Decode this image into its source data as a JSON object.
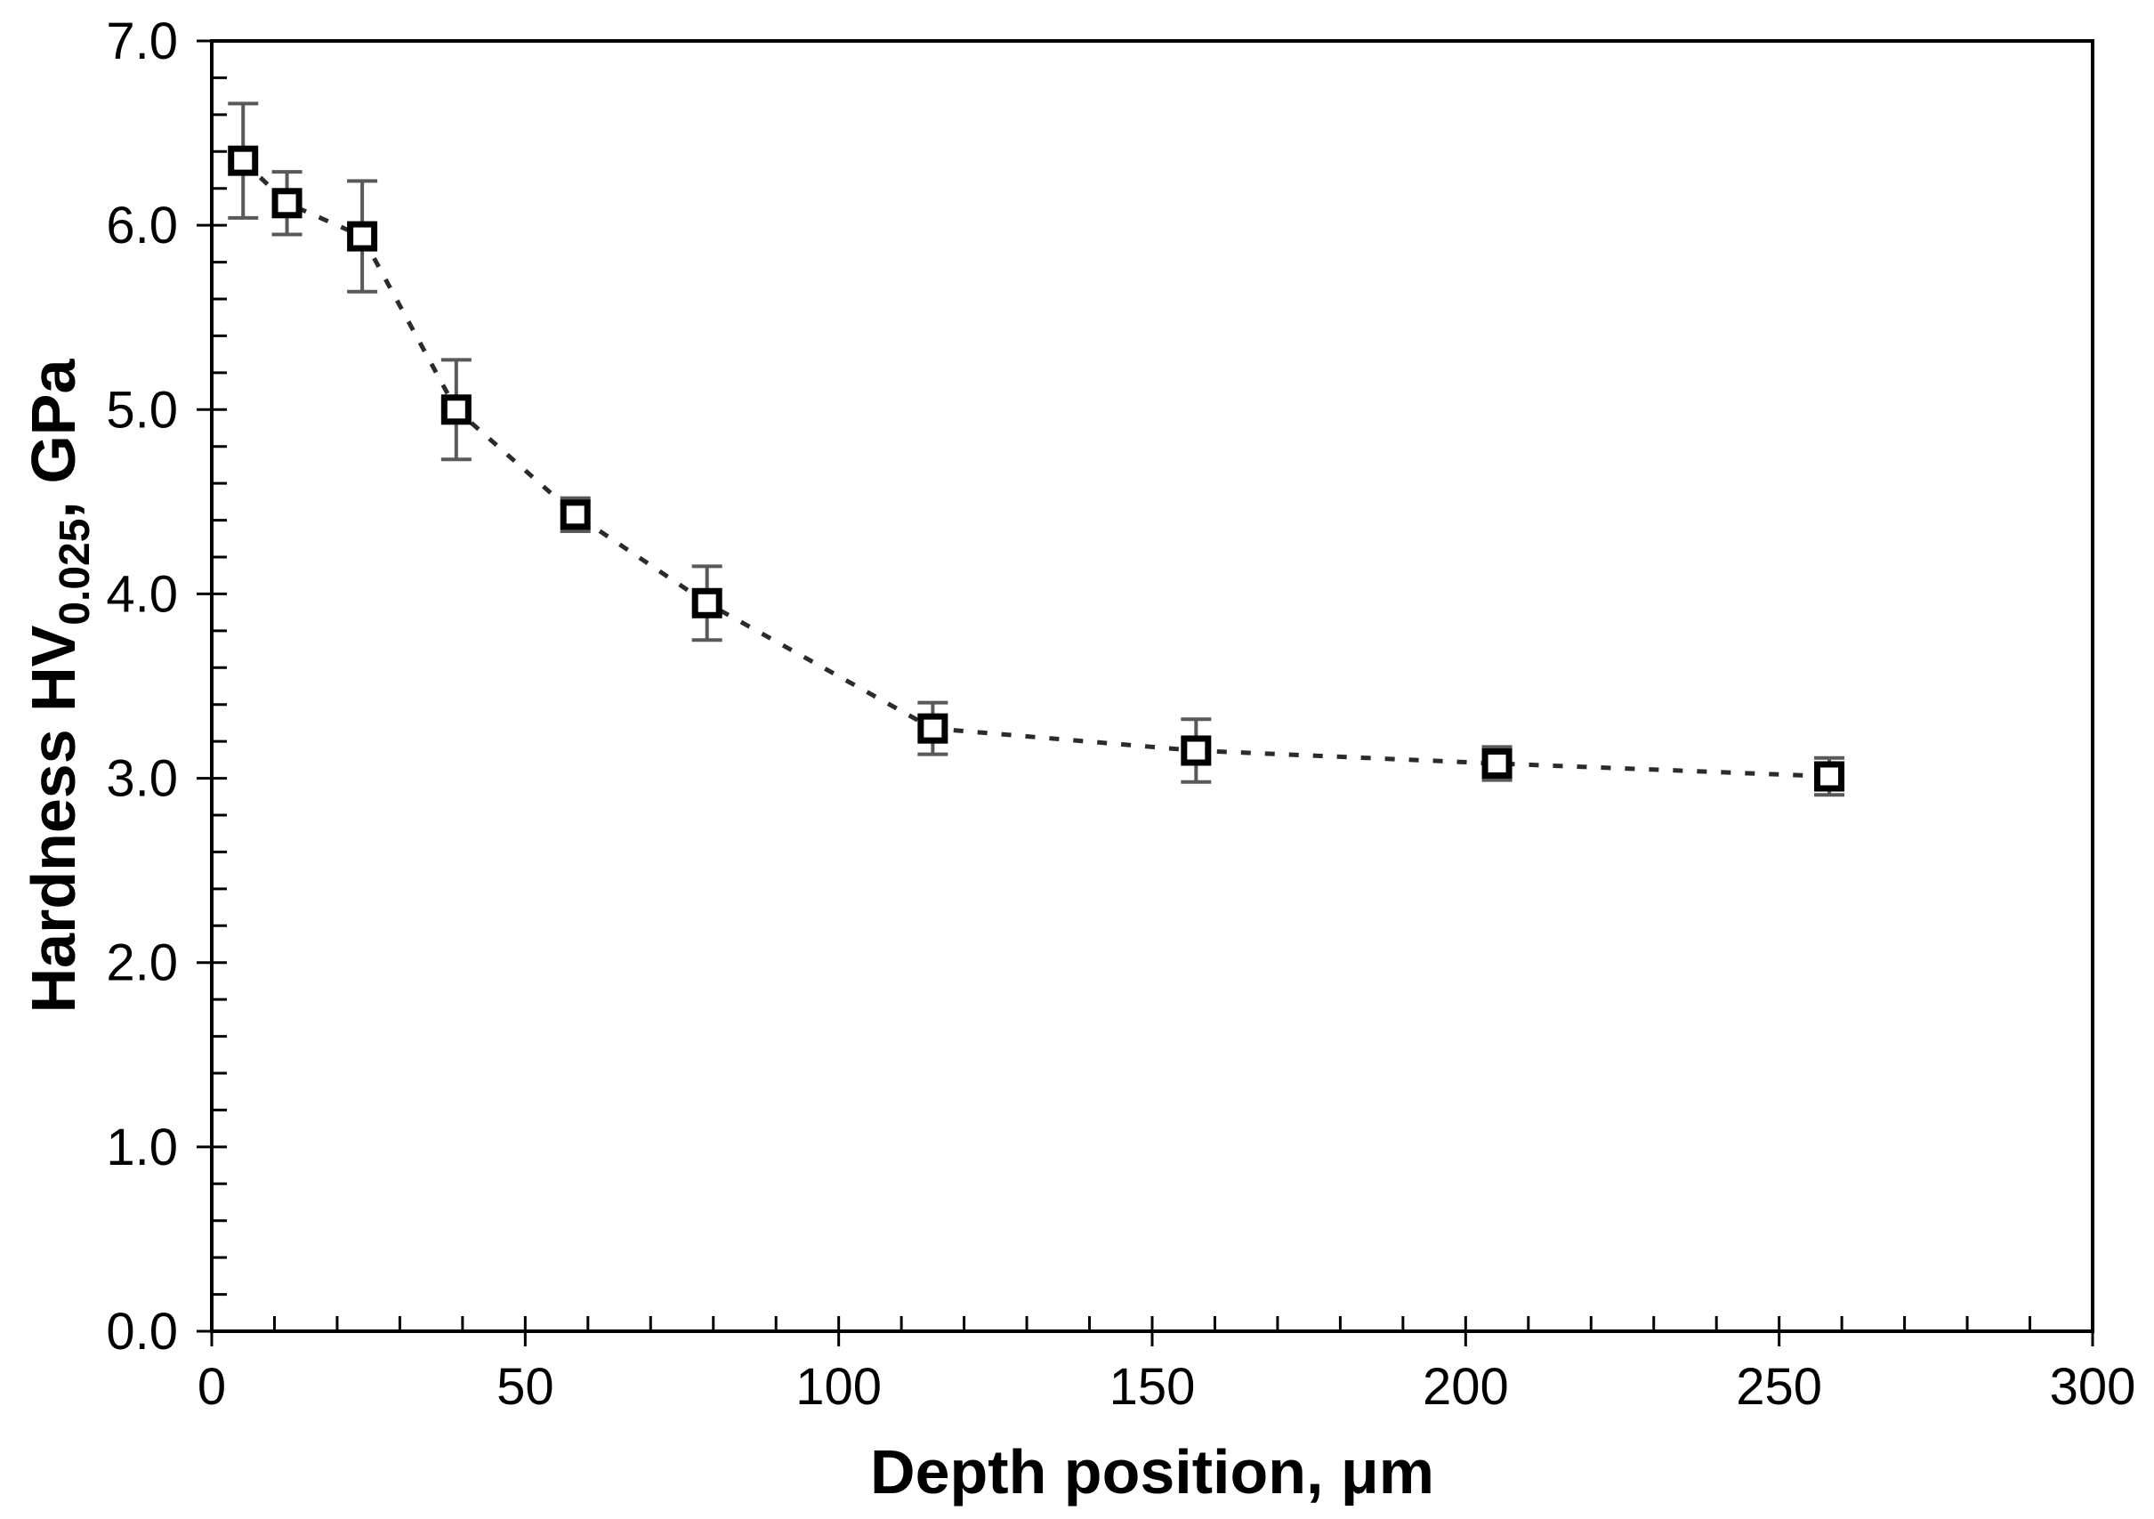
{
  "figure": {
    "background": "#ffffff",
    "frame_color": "#000000",
    "marker_color": "#000000",
    "marker_fill": "#ffffff",
    "error_bar_color": "#595959",
    "line_color": "#2b2b2b",
    "tick_label_color": "#000000"
  },
  "chart_data": {
    "type": "scatter",
    "title": "",
    "xlabel": "Depth position, μm",
    "ylabel_prefix": "Hardness HV",
    "ylabel_subscript": "0.025",
    "ylabel_suffix": ", GPa",
    "xlim": [
      0,
      300
    ],
    "ylim": [
      0.0,
      7.0
    ],
    "x_major_ticks": [
      0,
      50,
      100,
      150,
      200,
      250,
      300
    ],
    "x_tick_labels": [
      "0",
      "50",
      "100",
      "150",
      "200",
      "250",
      "300"
    ],
    "x_minor_step": 10,
    "y_major_ticks": [
      0,
      1,
      2,
      3,
      4,
      5,
      6,
      7
    ],
    "y_tick_labels": [
      "0.0",
      "1.0",
      "2.0",
      "3.0",
      "4.0",
      "5.0",
      "6.0",
      "7.0"
    ],
    "y_minor_step": 0.2,
    "grid": false,
    "legend": false,
    "series": [
      {
        "name": "hardness-depth-profile",
        "marker": "open-square",
        "line_style": "dashed",
        "points": [
          {
            "x": 5,
            "y": 6.35,
            "err": 0.31
          },
          {
            "x": 12,
            "y": 6.12,
            "err": 0.17
          },
          {
            "x": 24,
            "y": 5.94,
            "err": 0.3
          },
          {
            "x": 39,
            "y": 5.0,
            "err": 0.27
          },
          {
            "x": 58,
            "y": 4.43,
            "err": 0.09
          },
          {
            "x": 79,
            "y": 3.95,
            "err": 0.2
          },
          {
            "x": 115,
            "y": 3.27,
            "err": 0.14
          },
          {
            "x": 157,
            "y": 3.15,
            "err": 0.17
          },
          {
            "x": 205,
            "y": 3.08,
            "err": 0.09
          },
          {
            "x": 258,
            "y": 3.01,
            "err": 0.1
          }
        ]
      }
    ]
  }
}
